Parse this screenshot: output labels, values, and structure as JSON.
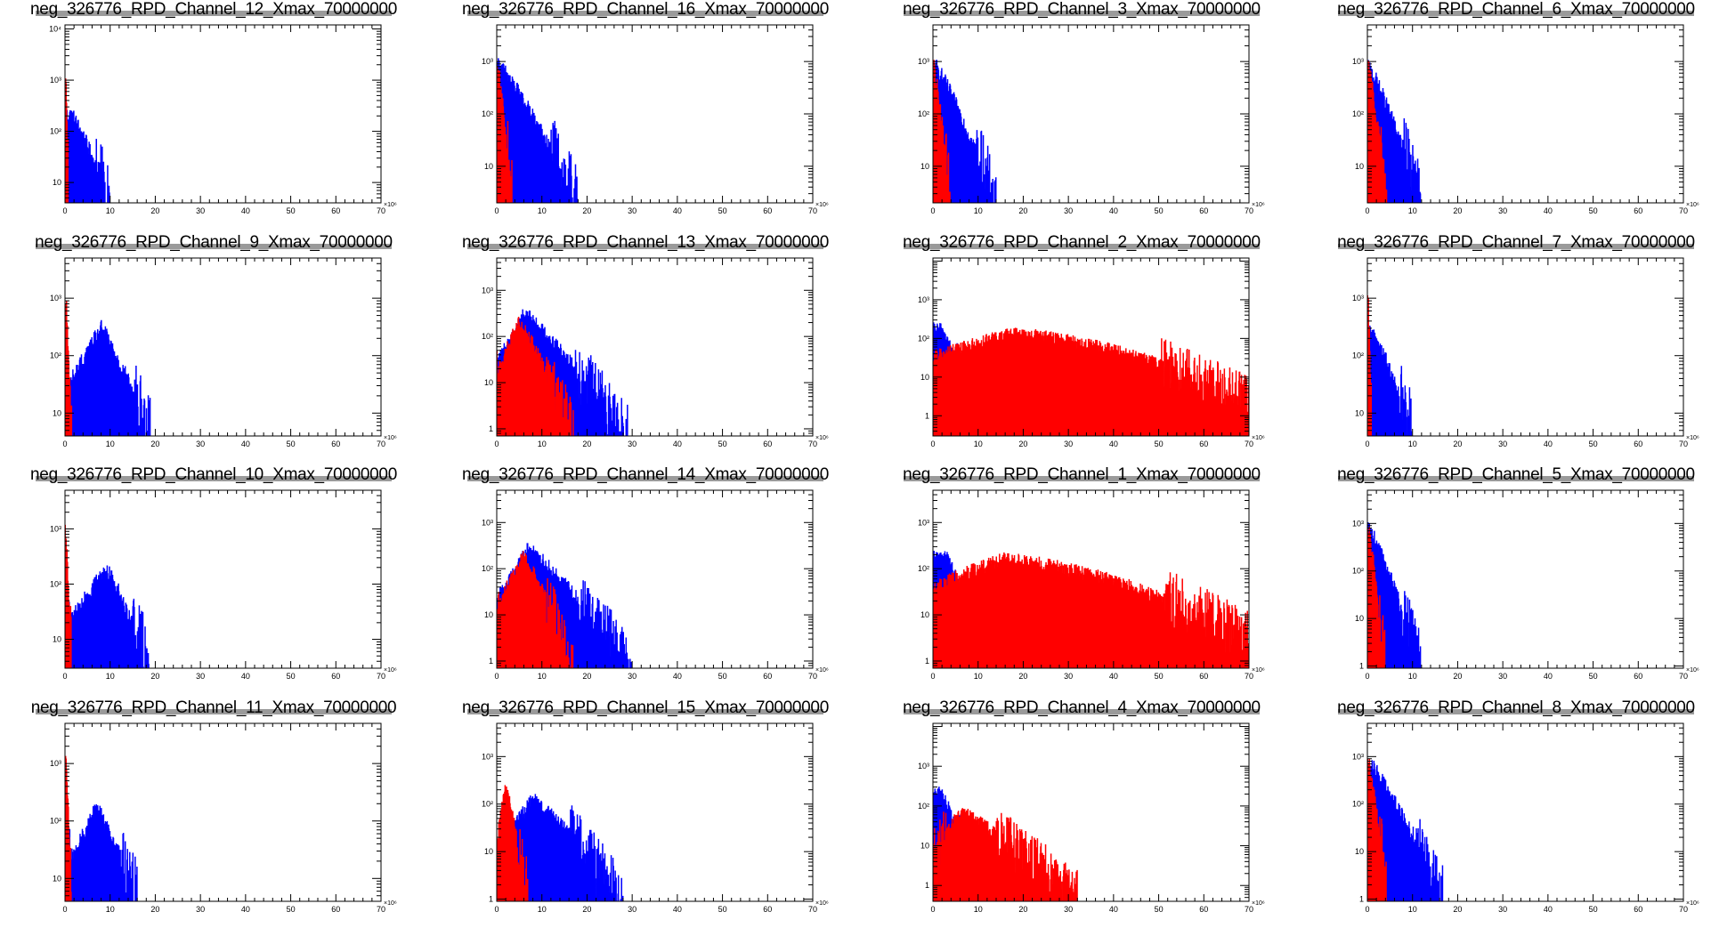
{
  "canvas": {
    "background": "#ffffff"
  },
  "colors": {
    "series_1": "#0000ff",
    "series_2": "#ff0000",
    "axis": "#000000"
  },
  "chart_data": [
    {
      "type": "histogram",
      "title": "neg_326776_RPD_Channel_12_Xmax_70000000",
      "xlim": [
        0,
        70
      ],
      "x_multiplier": "×10⁶",
      "yscale": "log",
      "ylim": [
        4,
        12000
      ],
      "ytick_labels": [
        "10",
        "10²",
        "10³",
        "10⁴"
      ],
      "xtick_labels": [
        "0",
        "10",
        "20",
        "30",
        "40",
        "50",
        "60",
        "70"
      ],
      "series": [
        {
          "color": "#0000ff",
          "peak_x": 1.5,
          "peak_y": 200,
          "rise": 0,
          "fall_to": 10,
          "floor_y": 4
        },
        {
          "color": "#ff0000",
          "peak_x": 0.2,
          "peak_y": 1000,
          "rise": 0,
          "fall_to": 0.8,
          "floor_y": 4
        }
      ]
    },
    {
      "type": "histogram",
      "title": "neg_326776_RPD_Channel_16_Xmax_70000000",
      "xlim": [
        0,
        70
      ],
      "x_multiplier": "×10⁶",
      "yscale": "log",
      "ylim": [
        2,
        5000
      ],
      "ytick_labels": [
        "10",
        "10²",
        "10³"
      ],
      "xtick_labels": [
        "0",
        "10",
        "20",
        "30",
        "40",
        "50",
        "60",
        "70"
      ],
      "series": [
        {
          "color": "#0000ff",
          "peak_x": 0.5,
          "peak_y": 800,
          "rise": 0,
          "fall_to": 18,
          "floor_y": 2
        },
        {
          "color": "#ff0000",
          "peak_x": 0.2,
          "peak_y": 800,
          "rise": 0,
          "fall_to": 3.5,
          "floor_y": 2
        }
      ]
    },
    {
      "type": "histogram",
      "title": "neg_326776_RPD_Channel_3_Xmax_70000000",
      "xlim": [
        0,
        70
      ],
      "x_multiplier": "×10⁶",
      "yscale": "log",
      "ylim": [
        2,
        5000
      ],
      "ytick_labels": [
        "10",
        "10²",
        "10³"
      ],
      "xtick_labels": [
        "0",
        "10",
        "20",
        "30",
        "40",
        "50",
        "60",
        "70"
      ],
      "series": [
        {
          "color": "#0000ff",
          "peak_x": 0.5,
          "peak_y": 800,
          "rise": 0,
          "fall_to": 14,
          "floor_y": 2
        },
        {
          "color": "#ff0000",
          "peak_x": 0.2,
          "peak_y": 800,
          "rise": 0,
          "fall_to": 4,
          "floor_y": 2
        }
      ]
    },
    {
      "type": "histogram",
      "title": "neg_326776_RPD_Channel_6_Xmax_70000000",
      "xlim": [
        0,
        70
      ],
      "x_multiplier": "×10⁶",
      "yscale": "log",
      "ylim": [
        2,
        5000
      ],
      "ytick_labels": [
        "10",
        "10²",
        "10³"
      ],
      "xtick_labels": [
        "0",
        "10",
        "20",
        "30",
        "40",
        "50",
        "60",
        "70"
      ],
      "series": [
        {
          "color": "#0000ff",
          "peak_x": 0.5,
          "peak_y": 700,
          "rise": 0,
          "fall_to": 12,
          "floor_y": 2
        },
        {
          "color": "#ff0000",
          "peak_x": 0.3,
          "peak_y": 700,
          "rise": 0,
          "fall_to": 4.5,
          "floor_y": 2
        }
      ]
    },
    {
      "type": "histogram",
      "title": "neg_326776_RPD_Channel_9_Xmax_70000000",
      "xlim": [
        0,
        70
      ],
      "x_multiplier": "×10⁶",
      "yscale": "log",
      "ylim": [
        4,
        5000
      ],
      "ytick_labels": [
        "10",
        "10²",
        "10³"
      ],
      "xtick_labels": [
        "0",
        "10",
        "20",
        "30",
        "40",
        "50",
        "60",
        "70"
      ],
      "series": [
        {
          "color": "#0000ff",
          "peak_x": 8,
          "peak_y": 280,
          "rise": 1.5,
          "fall_to": 19,
          "floor_y": 4
        },
        {
          "color": "#ff0000",
          "peak_x": 0.2,
          "peak_y": 1000,
          "rise": 0,
          "fall_to": 1.5,
          "floor_y": 4
        }
      ]
    },
    {
      "type": "histogram",
      "title": "neg_326776_RPD_Channel_13_Xmax_70000000",
      "xlim": [
        0,
        70
      ],
      "x_multiplier": "×10⁶",
      "yscale": "log",
      "ylim": [
        0.7,
        5000
      ],
      "ytick_labels": [
        "1",
        "10",
        "10²",
        "10³"
      ],
      "xtick_labels": [
        "0",
        "10",
        "20",
        "30",
        "40",
        "50",
        "60",
        "70"
      ],
      "series": [
        {
          "color": "#0000ff",
          "peak_x": 6,
          "peak_y": 300,
          "rise": 0.5,
          "fall_to": 29,
          "floor_y": 0.7
        },
        {
          "color": "#ff0000",
          "peak_x": 5,
          "peak_y": 200,
          "rise": 0.8,
          "fall_to": 17,
          "floor_y": 0.7
        }
      ]
    },
    {
      "type": "histogram",
      "title": "neg_326776_RPD_Channel_2_Xmax_70000000",
      "xlim": [
        0,
        70
      ],
      "x_multiplier": "×10⁶",
      "yscale": "log",
      "ylim": [
        0.3,
        12000
      ],
      "ytick_labels": [
        "1",
        "10",
        "10²",
        "10³"
      ],
      "xtick_labels": [
        "0",
        "10",
        "20",
        "30",
        "40",
        "50",
        "60",
        "70"
      ],
      "series": [
        {
          "color": "#0000ff",
          "peak_x": 2,
          "peak_y": 170,
          "rise": 0,
          "fall_to": 10,
          "floor_y": 0.3
        },
        {
          "color": "#ff0000",
          "peak_x": 17,
          "peak_y": 130,
          "rise": 3,
          "fall_to": 70,
          "floor_y": 0.3,
          "broad": true
        }
      ]
    },
    {
      "type": "histogram",
      "title": "neg_326776_RPD_Channel_7_Xmax_70000000",
      "xlim": [
        0,
        70
      ],
      "x_multiplier": "×10⁶",
      "yscale": "log",
      "ylim": [
        4,
        5000
      ],
      "ytick_labels": [
        "10",
        "10²",
        "10³"
      ],
      "xtick_labels": [
        "0",
        "10",
        "20",
        "30",
        "40",
        "50",
        "60",
        "70"
      ],
      "series": [
        {
          "color": "#0000ff",
          "peak_x": 1.5,
          "peak_y": 220,
          "rise": 0,
          "fall_to": 10,
          "floor_y": 4
        },
        {
          "color": "#ff0000",
          "peak_x": 0.2,
          "peak_y": 900,
          "rise": 0,
          "fall_to": 1,
          "floor_y": 4
        }
      ]
    },
    {
      "type": "histogram",
      "title": "neg_326776_RPD_Channel_10_Xmax_70000000",
      "xlim": [
        0,
        70
      ],
      "x_multiplier": "×10⁶",
      "yscale": "log",
      "ylim": [
        3,
        5000
      ],
      "ytick_labels": [
        "10",
        "10²",
        "10³"
      ],
      "xtick_labels": [
        "0",
        "10",
        "20",
        "30",
        "40",
        "50",
        "60",
        "70"
      ],
      "series": [
        {
          "color": "#0000ff",
          "peak_x": 9,
          "peak_y": 180,
          "rise": 1.5,
          "fall_to": 19,
          "floor_y": 3
        },
        {
          "color": "#ff0000",
          "peak_x": 0.2,
          "peak_y": 900,
          "rise": 0,
          "fall_to": 1.5,
          "floor_y": 3
        }
      ]
    },
    {
      "type": "histogram",
      "title": "neg_326776_RPD_Channel_14_Xmax_70000000",
      "xlim": [
        0,
        70
      ],
      "x_multiplier": "×10⁶",
      "yscale": "log",
      "ylim": [
        0.7,
        5000
      ],
      "ytick_labels": [
        "1",
        "10",
        "10²",
        "10³"
      ],
      "xtick_labels": [
        "0",
        "10",
        "20",
        "30",
        "40",
        "50",
        "60",
        "70"
      ],
      "series": [
        {
          "color": "#0000ff",
          "peak_x": 7,
          "peak_y": 260,
          "rise": 0.5,
          "fall_to": 30,
          "floor_y": 0.7
        },
        {
          "color": "#ff0000",
          "peak_x": 6,
          "peak_y": 180,
          "rise": 0.8,
          "fall_to": 17,
          "floor_y": 0.7
        }
      ]
    },
    {
      "type": "histogram",
      "title": "neg_326776_RPD_Channel_1_Xmax_70000000",
      "xlim": [
        0,
        70
      ],
      "x_multiplier": "×10⁶",
      "yscale": "log",
      "ylim": [
        0.7,
        5000
      ],
      "ytick_labels": [
        "1",
        "10",
        "10²",
        "10³"
      ],
      "xtick_labels": [
        "0",
        "10",
        "20",
        "30",
        "40",
        "50",
        "60",
        "70"
      ],
      "series": [
        {
          "color": "#0000ff",
          "peak_x": 3,
          "peak_y": 170,
          "rise": 0,
          "fall_to": 12,
          "floor_y": 0.7
        },
        {
          "color": "#ff0000",
          "peak_x": 15,
          "peak_y": 150,
          "rise": 3,
          "fall_to": 70,
          "floor_y": 0.7,
          "broad": true
        }
      ]
    },
    {
      "type": "histogram",
      "title": "neg_326776_RPD_Channel_5_Xmax_70000000",
      "xlim": [
        0,
        70
      ],
      "x_multiplier": "×10⁶",
      "yscale": "log",
      "ylim": [
        0.9,
        5000
      ],
      "ytick_labels": [
        "1",
        "10",
        "10²",
        "10³"
      ],
      "xtick_labels": [
        "0",
        "10",
        "20",
        "30",
        "40",
        "50",
        "60",
        "70"
      ],
      "series": [
        {
          "color": "#0000ff",
          "peak_x": 0.5,
          "peak_y": 700,
          "rise": 0,
          "fall_to": 12,
          "floor_y": 0.9
        },
        {
          "color": "#ff0000",
          "peak_x": 0.3,
          "peak_y": 700,
          "rise": 0,
          "fall_to": 4,
          "floor_y": 0.9
        }
      ]
    },
    {
      "type": "histogram",
      "title": "neg_326776_RPD_Channel_11_Xmax_70000000",
      "xlim": [
        0,
        70
      ],
      "x_multiplier": "×10⁶",
      "yscale": "log",
      "ylim": [
        4,
        5000
      ],
      "ytick_labels": [
        "10",
        "10²",
        "10³"
      ],
      "xtick_labels": [
        "0",
        "10",
        "20",
        "30",
        "40",
        "50",
        "60",
        "70"
      ],
      "series": [
        {
          "color": "#0000ff",
          "peak_x": 7,
          "peak_y": 160,
          "rise": 1.5,
          "fall_to": 16,
          "floor_y": 4
        },
        {
          "color": "#ff0000",
          "peak_x": 0.2,
          "peak_y": 1000,
          "rise": 0,
          "fall_to": 1.5,
          "floor_y": 4
        }
      ]
    },
    {
      "type": "histogram",
      "title": "neg_326776_RPD_Channel_15_Xmax_70000000",
      "xlim": [
        0,
        70
      ],
      "x_multiplier": "×10⁶",
      "yscale": "log",
      "ylim": [
        0.9,
        5000
      ],
      "ytick_labels": [
        "1",
        "10",
        "10²",
        "10³"
      ],
      "xtick_labels": [
        "0",
        "10",
        "20",
        "30",
        "40",
        "50",
        "60",
        "70"
      ],
      "series": [
        {
          "color": "#0000ff",
          "peak_x": 8,
          "peak_y": 120,
          "rise": 0.5,
          "fall_to": 28,
          "floor_y": 0.9
        },
        {
          "color": "#ff0000",
          "peak_x": 2,
          "peak_y": 220,
          "rise": 0.3,
          "fall_to": 7,
          "floor_y": 0.9
        }
      ]
    },
    {
      "type": "histogram",
      "title": "neg_326776_RPD_Channel_4_Xmax_70000000",
      "xlim": [
        0,
        70
      ],
      "x_multiplier": "×10⁶",
      "yscale": "log",
      "ylim": [
        0.4,
        12000
      ],
      "ytick_labels": [
        "1",
        "10",
        "10²",
        "10³"
      ],
      "xtick_labels": [
        "0",
        "10",
        "20",
        "30",
        "40",
        "50",
        "60",
        "70"
      ],
      "series": [
        {
          "color": "#0000ff",
          "peak_x": 2,
          "peak_y": 200,
          "rise": 0,
          "fall_to": 10,
          "floor_y": 0.4
        },
        {
          "color": "#ff0000",
          "peak_x": 6,
          "peak_y": 70,
          "rise": 1,
          "fall_to": 32,
          "floor_y": 0.4
        }
      ]
    },
    {
      "type": "histogram",
      "title": "neg_326776_RPD_Channel_8_Xmax_70000000",
      "xlim": [
        0,
        70
      ],
      "x_multiplier": "×10⁶",
      "yscale": "log",
      "ylim": [
        0.9,
        5000
      ],
      "ytick_labels": [
        "1",
        "10",
        "10²",
        "10³"
      ],
      "xtick_labels": [
        "0",
        "10",
        "20",
        "30",
        "40",
        "50",
        "60",
        "70"
      ],
      "series": [
        {
          "color": "#0000ff",
          "peak_x": 0.5,
          "peak_y": 700,
          "rise": 0,
          "fall_to": 17,
          "floor_y": 0.9
        },
        {
          "color": "#ff0000",
          "peak_x": 0.3,
          "peak_y": 700,
          "rise": 0,
          "fall_to": 4.5,
          "floor_y": 0.9
        }
      ]
    }
  ]
}
